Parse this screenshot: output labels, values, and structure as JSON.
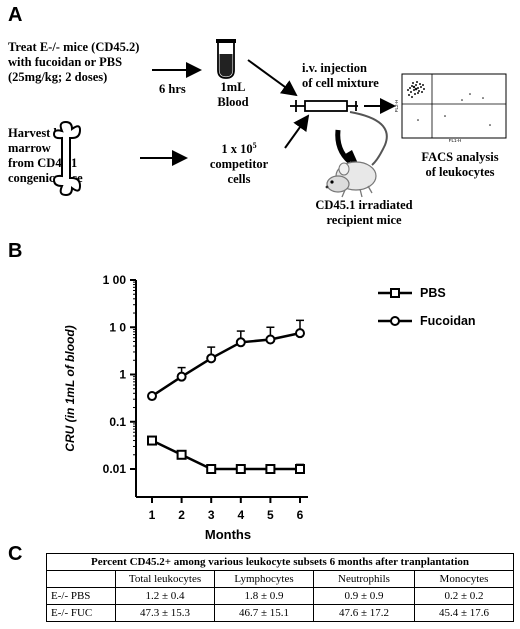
{
  "panel_a": {
    "letter": "A",
    "step1": [
      "Treat E-/- mice (CD45.2)",
      "with fucoidan or PBS",
      "(25mg/kg; 2 doses)"
    ],
    "step1_time": "6 hrs",
    "blood": [
      "1mL",
      "Blood"
    ],
    "step2": [
      "Harvest bone",
      "marrow",
      "from CD45.1",
      "congenic mice"
    ],
    "competitor": [
      "1 x 10",
      "5",
      "competitor",
      "cells"
    ],
    "injection": [
      "i.v. injection",
      "of cell mixture"
    ],
    "recipient": [
      "CD45.1 irradiated",
      "recipient mice"
    ],
    "facs": [
      "FACS analysis",
      "of leukocytes"
    ],
    "facs_axis_x": "FL1-H",
    "facs_axis_y": "FL2-H"
  },
  "panel_b": {
    "letter": "B"
  },
  "chart_data": {
    "type": "line",
    "x": [
      1,
      2,
      3,
      4,
      5,
      6
    ],
    "xlabel": "Months",
    "ylabel": "CRU   (in 1mL of blood)",
    "yscale": "log",
    "ylim": [
      0.01,
      100
    ],
    "y_ticks": [
      "0.01",
      "0.1",
      "1",
      "1 0",
      "1 00"
    ],
    "x_ticks": [
      "1",
      "2",
      "3",
      "4",
      "5",
      "6"
    ],
    "grid": false,
    "legend_placement": "right",
    "series": [
      {
        "name": "PBS",
        "marker": "square",
        "values": [
          0.04,
          0.02,
          0.01,
          0.01,
          0.01,
          0.01
        ],
        "errors": [
          0.004,
          0.002,
          0.001,
          0.001,
          0.001,
          0.0025
        ]
      },
      {
        "name": "Fucoidan",
        "marker": "circle",
        "values": [
          0.35,
          0.9,
          2.2,
          4.8,
          5.5,
          7.5
        ],
        "errors": [
          0.04,
          0.5,
          1.6,
          3.5,
          4.5,
          6.5
        ]
      }
    ]
  },
  "panel_c": {
    "letter": "C",
    "title": "Percent CD45.2+ among various leukocyte subsets 6 months after tranplantation",
    "headers": [
      "",
      "Total leukocytes",
      "Lymphocytes",
      "Neutrophils",
      "Monocytes"
    ],
    "rows": [
      [
        "E-/- PBS",
        "1.2 ± 0.4",
        "1.8 ± 0.9",
        "0.9 ± 0.9",
        "0.2 ± 0.2"
      ],
      [
        "E-/- FUC",
        "47.3 ± 15.3",
        "46.7 ± 15.1",
        "47.6 ± 17.2",
        "45.4 ± 17.6"
      ]
    ]
  }
}
